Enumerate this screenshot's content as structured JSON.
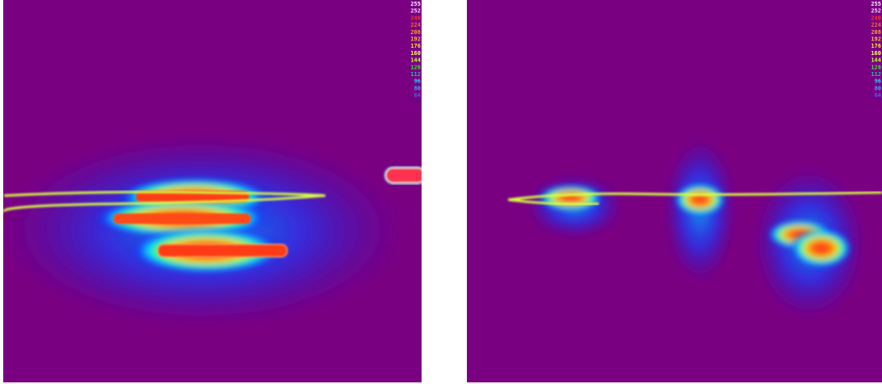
{
  "panels": [
    {
      "scale": [
        255,
        252,
        240,
        224,
        208,
        192,
        176,
        160,
        144,
        128,
        112,
        96,
        80,
        64
      ]
    },
    {
      "scale": [
        255,
        252,
        240,
        224,
        208,
        192,
        176,
        160,
        144,
        128,
        112,
        96,
        80,
        64
      ]
    }
  ]
}
